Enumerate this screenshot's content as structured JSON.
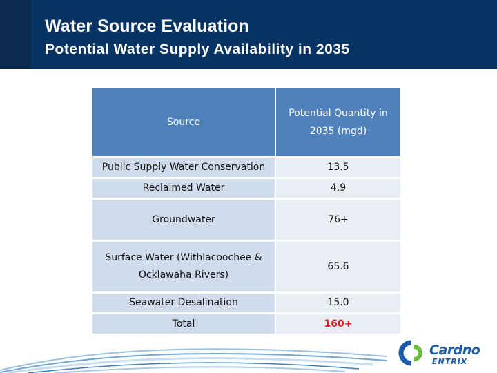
{
  "header": {
    "title": "Water Source Evaluation",
    "subtitle": "Potential Water Supply Availability in 2035"
  },
  "table": {
    "columns": [
      "Source",
      "Potential Quantity in 2035 (mgd)"
    ],
    "rows": [
      {
        "source": "Public Supply Water Conservation",
        "quantity": "13.5"
      },
      {
        "source": "Reclaimed Water",
        "quantity": "4.9"
      },
      {
        "source": "Groundwater",
        "quantity": "76+"
      },
      {
        "source": "Surface Water (Withlacoochee & Ocklawaha Rivers)",
        "quantity": "65.6"
      },
      {
        "source": "Seawater Desalination",
        "quantity": "15.0"
      },
      {
        "source": "Total",
        "quantity": "160+"
      }
    ]
  },
  "logo": {
    "name": "Cardno",
    "sub": "ENTRIX"
  },
  "colors": {
    "header_bg": "#073462",
    "header_row": "#4f81bd",
    "source_col": "#d0dcec",
    "value_col": "#e9edf4",
    "total_value": "#e0191b",
    "logo_blue": "#1b5aa6",
    "logo_green": "#6bbf3b"
  }
}
